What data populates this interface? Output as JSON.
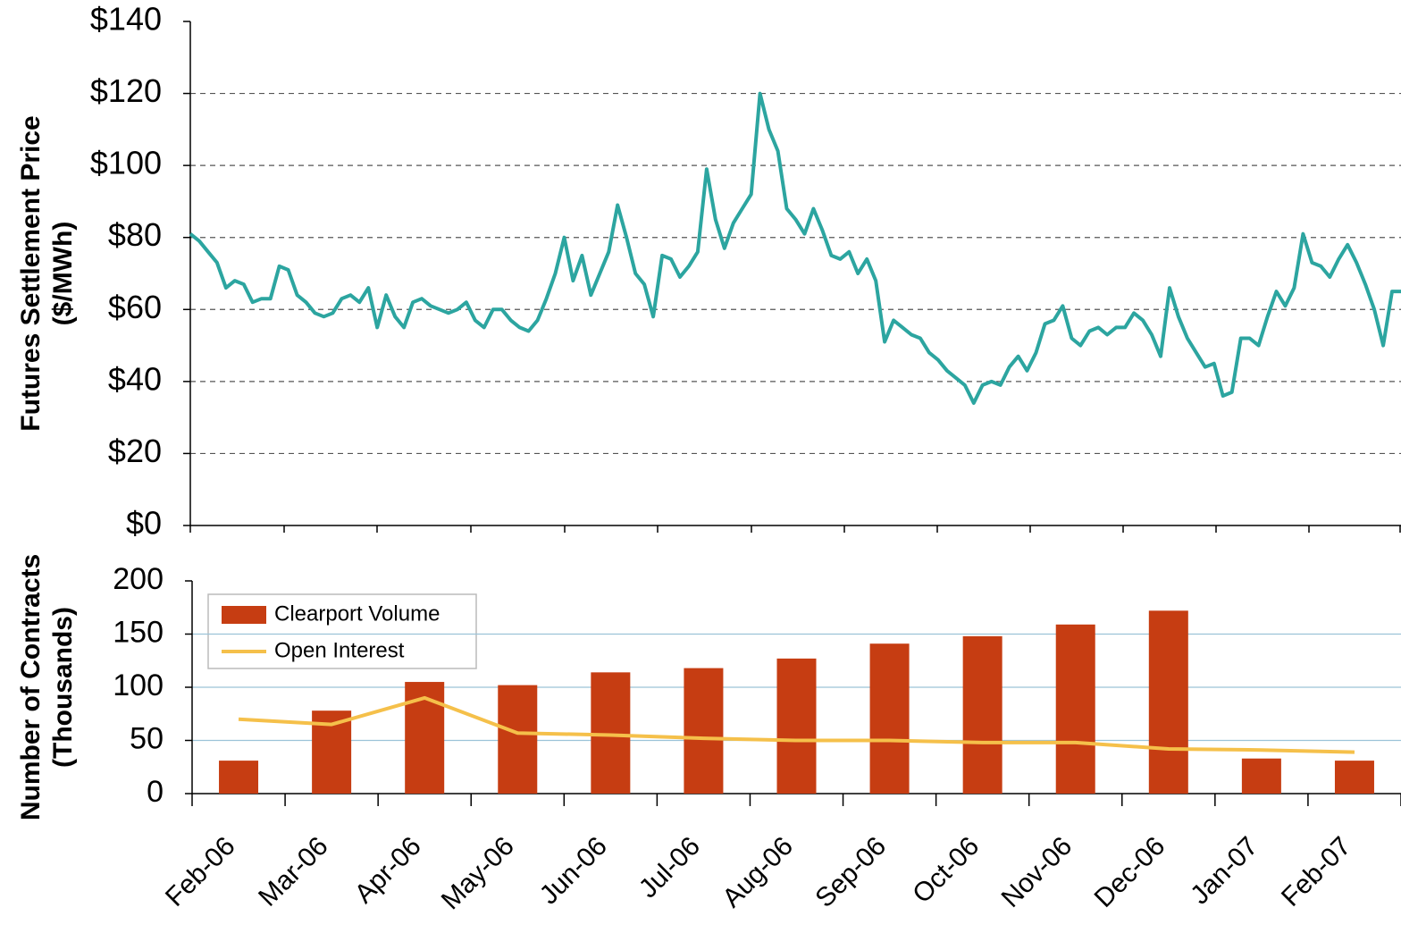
{
  "chart_data": [
    {
      "type": "line",
      "ylabel": [
        "Futures Settlement Price",
        "($/MWh)"
      ],
      "color": "#2ca5a0",
      "values": [
        81,
        79,
        76,
        73,
        66,
        68,
        67,
        62,
        63,
        63,
        72,
        71,
        64,
        62,
        59,
        58,
        59,
        63,
        64,
        62,
        66,
        55,
        64,
        58,
        55,
        62,
        63,
        61,
        60,
        59,
        60,
        62,
        57,
        55,
        60,
        60,
        57,
        55,
        54,
        57,
        63,
        70,
        80,
        68,
        75,
        64,
        70,
        76,
        89,
        80,
        70,
        67,
        58,
        75,
        74,
        69,
        72,
        76,
        99,
        85,
        77,
        84,
        88,
        92,
        120,
        110,
        104,
        88,
        85,
        81,
        88,
        82,
        75,
        74,
        76,
        70,
        74,
        68,
        51,
        57,
        55,
        53,
        52,
        48,
        46,
        43,
        41,
        39,
        34,
        39,
        40,
        39,
        44,
        47,
        43,
        48,
        56,
        57,
        61,
        52,
        50,
        54,
        55,
        53,
        55,
        55,
        59,
        57,
        53,
        47,
        66,
        58,
        52,
        48,
        44,
        45,
        36,
        37,
        52,
        52,
        50,
        58,
        65,
        61,
        66,
        81,
        73,
        72,
        69,
        74,
        78,
        73,
        67,
        60,
        50,
        65,
        65
      ],
      "ylim": [
        0,
        140
      ],
      "yticks": [
        {
          "value": 0,
          "label": "$0"
        },
        {
          "value": 20,
          "label": "$20"
        },
        {
          "value": 40,
          "label": "$40"
        },
        {
          "value": 60,
          "label": "$60"
        },
        {
          "value": 80,
          "label": "$80"
        },
        {
          "value": 100,
          "label": "$100"
        },
        {
          "value": 120,
          "label": "$120"
        },
        {
          "value": 140,
          "label": "$140"
        }
      ],
      "grid": true
    },
    {
      "type": "bar-line",
      "ylabel": [
        "Number of Contracts",
        "(Thousands)"
      ],
      "categories": [
        "Feb-06",
        "Mar-06",
        "Apr-06",
        "May-06",
        "Jun-06",
        "Jul-06",
        "Aug-06",
        "Sep-06",
        "Oct-06",
        "Nov-06",
        "Dec-06",
        "Jan-07",
        "Feb-07"
      ],
      "series": [
        {
          "name": "Clearport Volume",
          "type": "bar",
          "color": "#c63d12",
          "values": [
            31,
            78,
            105,
            102,
            114,
            118,
            127,
            141,
            148,
            159,
            172,
            33,
            31
          ]
        },
        {
          "name": "Open Interest",
          "type": "line",
          "color": "#f5c04a",
          "values": [
            70,
            65,
            90,
            57,
            55,
            52,
            50,
            50,
            48,
            48,
            42,
            41,
            39
          ]
        }
      ],
      "ylim": [
        0,
        200
      ],
      "yticks": [
        0,
        50,
        100,
        150,
        200
      ],
      "grid": true
    }
  ]
}
